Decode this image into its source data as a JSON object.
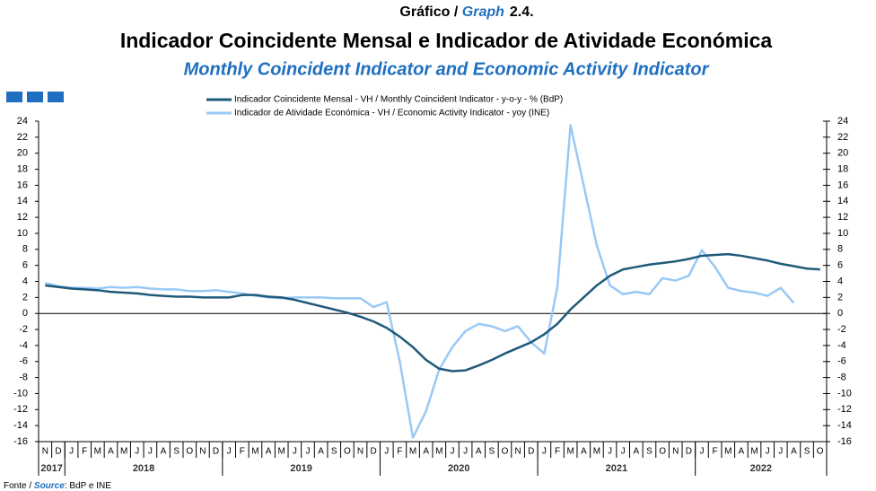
{
  "chart_data": {
    "type": "line",
    "title_prefix": "Gráfico / ",
    "title_graph": "Graph",
    "title_number": "2.4.",
    "title": "Indicador Coincidente Mensal e Indicador de Atividade Económica",
    "subtitle": "Monthly Coincident Indicator and Economic Activity Indicator",
    "source_label": "Fonte / ",
    "source_en": "Source",
    "source_text": ": BdP e INE",
    "categories": [
      "N",
      "D",
      "J",
      "F",
      "M",
      "A",
      "M",
      "J",
      "J",
      "A",
      "S",
      "O",
      "N",
      "D",
      "J",
      "F",
      "M",
      "A",
      "M",
      "J",
      "J",
      "A",
      "S",
      "O",
      "N",
      "D",
      "J",
      "F",
      "M",
      "A",
      "M",
      "J",
      "J",
      "A",
      "S",
      "O",
      "N",
      "D",
      "J",
      "F",
      "M",
      "A",
      "M",
      "J",
      "J",
      "A",
      "S",
      "O",
      "N",
      "D",
      "J",
      "F",
      "M",
      "A",
      "M",
      "J",
      "J",
      "A",
      "S",
      "O"
    ],
    "year_groups": [
      {
        "label": "2017",
        "months": 2
      },
      {
        "label": "2018",
        "months": 12
      },
      {
        "label": "2019",
        "months": 12
      },
      {
        "label": "2020",
        "months": 12
      },
      {
        "label": "2021",
        "months": 12
      },
      {
        "label": "2022",
        "months": 10
      }
    ],
    "series": [
      {
        "name": "Indicador Coincidente Mensal - VH / Monthly Coincident Indicator - y-o-y - % (BdP)",
        "color": "#1f5a7a",
        "values": [
          3.5,
          3.3,
          3.1,
          3.0,
          2.9,
          2.7,
          2.6,
          2.5,
          2.3,
          2.2,
          2.1,
          2.1,
          2.0,
          2.0,
          2.0,
          2.3,
          2.3,
          2.1,
          2.0,
          1.7,
          1.3,
          0.9,
          0.5,
          0.1,
          -0.4,
          -1.0,
          -1.8,
          -2.9,
          -4.2,
          -5.8,
          -6.9,
          -7.2,
          -7.1,
          -6.5,
          -5.8,
          -5.0,
          -4.3,
          -3.6,
          -2.6,
          -1.3,
          0.5,
          2.0,
          3.5,
          4.7,
          5.5,
          5.8,
          6.1,
          6.3,
          6.5,
          6.8,
          7.2,
          7.3,
          7.4,
          7.2,
          6.9,
          6.6,
          6.2,
          5.9,
          5.6,
          5.5
        ]
      },
      {
        "name": "Indicador de Atividade Económica - VH / Economic Activity Indicator - yoy (INE)",
        "color": "#99c9f5",
        "values": [
          3.8,
          3.4,
          3.2,
          3.2,
          3.1,
          3.3,
          3.2,
          3.3,
          3.1,
          3.0,
          3.0,
          2.8,
          2.8,
          2.9,
          2.7,
          2.5,
          2.2,
          2.0,
          1.9,
          2.0,
          2.0,
          2.0,
          1.9,
          1.9,
          1.9,
          0.8,
          1.4,
          -6.0,
          -15.5,
          -12.2,
          -7.0,
          -4.2,
          -2.2,
          -1.3,
          -1.6,
          -2.2,
          -1.6,
          -3.6,
          -5.0,
          3.3,
          23.5,
          16.0,
          8.5,
          3.5,
          2.4,
          2.7,
          2.4,
          4.4,
          4.1,
          4.7,
          7.9,
          5.8,
          3.2,
          2.8,
          2.6,
          2.2,
          3.2,
          1.3,
          null,
          null
        ]
      }
    ],
    "ylim": [
      -16,
      24
    ],
    "yticks": [
      -16,
      -14,
      -12,
      -10,
      -8,
      -6,
      -4,
      -2,
      0,
      2,
      4,
      6,
      8,
      10,
      12,
      14,
      16,
      18,
      20,
      22,
      24
    ],
    "y2lim": [
      -16,
      24
    ],
    "y2ticks": [
      -16,
      -14,
      -12,
      -10,
      -8,
      -6,
      -4,
      -2,
      0,
      2,
      4,
      6,
      8,
      10,
      12,
      14,
      16,
      18,
      20,
      22,
      24
    ],
    "grid": false
  }
}
